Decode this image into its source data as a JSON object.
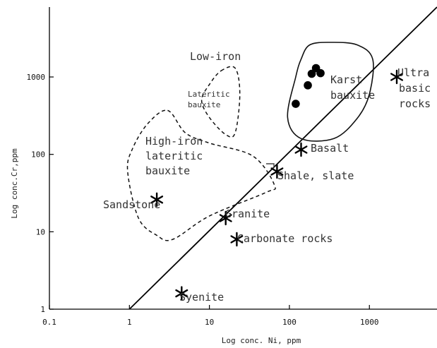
{
  "chart_data": {
    "type": "scatter",
    "title": "",
    "xlabel": "Log conc. Ni, ppm",
    "ylabel": "Log conc.Cr,ppm",
    "x_scale": "log",
    "y_scale": "log",
    "xlim": [
      0.1,
      7000
    ],
    "ylim": [
      1,
      8000
    ],
    "x_ticks": [
      {
        "value": 0.1,
        "label": "0.1"
      },
      {
        "value": 1,
        "label": "1"
      },
      {
        "value": 10,
        "label": "10"
      },
      {
        "value": 100,
        "label": "100"
      },
      {
        "value": 1000,
        "label": "1000"
      }
    ],
    "y_ticks": [
      {
        "value": 1,
        "label": "1"
      },
      {
        "value": 10,
        "label": "10"
      },
      {
        "value": 100,
        "label": "100"
      },
      {
        "value": 1000,
        "label": "1000"
      }
    ],
    "grid": false,
    "reference_line": {
      "from": [
        1,
        1
      ],
      "to": [
        7000,
        8000
      ]
    },
    "rock_points": [
      {
        "name": "Syenite",
        "x": 4.5,
        "y": 1.6
      },
      {
        "name": "Carbonate rocks",
        "x": 22,
        "y": 8
      },
      {
        "name": "Granite",
        "x": 16,
        "y": 15
      },
      {
        "name": "Sandstone",
        "x": 2.2,
        "y": 26
      },
      {
        "name": "Shale, slate",
        "x": 70,
        "y": 60
      },
      {
        "name": "Basalt",
        "x": 140,
        "y": 115
      },
      {
        "name": "Ultra basic rocks",
        "x": 2200,
        "y": 1000
      }
    ],
    "bauxite_samples": [
      {
        "x": 120,
        "y": 450
      },
      {
        "x": 170,
        "y": 780
      },
      {
        "x": 190,
        "y": 1100
      },
      {
        "x": 215,
        "y": 1300
      },
      {
        "x": 245,
        "y": 1120
      }
    ],
    "fields": [
      {
        "name": "Karst bauxite",
        "style": "solid",
        "outline": [
          [
            180,
            2600
          ],
          [
            330,
            2800
          ],
          [
            700,
            2600
          ],
          [
            1100,
            1700
          ],
          [
            1000,
            600
          ],
          [
            700,
            290
          ],
          [
            360,
            160
          ],
          [
            140,
            160
          ],
          [
            95,
            300
          ],
          [
            120,
            1000
          ],
          [
            140,
            1700
          ]
        ]
      },
      {
        "name": "Low-iron lateritic bauxite",
        "style": "dashed",
        "outline": [
          [
            14,
            1200
          ],
          [
            21,
            1300
          ],
          [
            24,
            600
          ],
          [
            21,
            190
          ],
          [
            16,
            180
          ],
          [
            10,
            300
          ],
          [
            8,
            500
          ],
          [
            10,
            800
          ]
        ]
      },
      {
        "name": "High-iron lateritic bauxite",
        "style": "dashed",
        "outline": [
          [
            3,
            370
          ],
          [
            5,
            190
          ],
          [
            10,
            140
          ],
          [
            35,
            95
          ],
          [
            65,
            40
          ],
          [
            50,
            32
          ],
          [
            10,
            16
          ],
          [
            3.5,
            8
          ],
          [
            2.2,
            9
          ],
          [
            1.3,
            15
          ],
          [
            0.95,
            60
          ],
          [
            1.1,
            120
          ],
          [
            1.7,
            250
          ]
        ]
      }
    ],
    "labels": {
      "syenite": "Syenite",
      "carbonate": "Carbonate rocks",
      "granite": "Granite",
      "sandstone": "Sandstone",
      "shale": "Shale, slate",
      "basalt": "Basalt",
      "ultra1": "Ultra",
      "ultra2": "basic",
      "ultra3": "rocks",
      "karst1": "Karst",
      "karst2": "bauxite",
      "lowiron": "Low-iron",
      "lat1": "Lateritic",
      "lat2": "bauxite",
      "hi1": "High-iron",
      "hi2": "lateritic",
      "hi3": "bauxite"
    }
  }
}
